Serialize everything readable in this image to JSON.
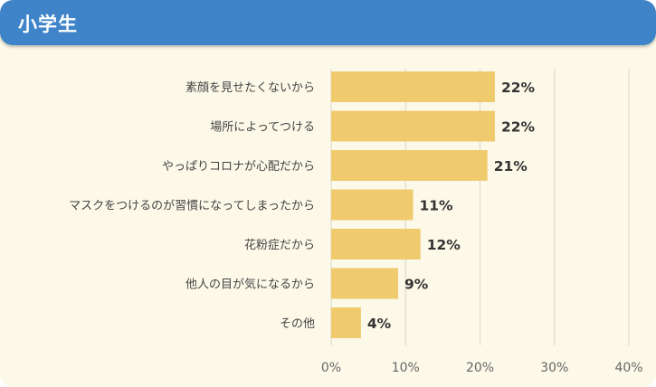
{
  "header": {
    "title": "小学生"
  },
  "colors": {
    "header_bg": "#3f84c9",
    "panel_bg": "#fcf9e9",
    "bar": "#f0cb6e",
    "grid": "#d9d6c8"
  },
  "chart_data": {
    "type": "bar",
    "orientation": "horizontal",
    "title": "小学生",
    "categories": [
      "素顔を見せたくないから",
      "場所によってつける",
      "やっぱりコロナが心配だから",
      "マスクをつけるのが習慣になってしまったから",
      "花粉症だから",
      "他人の目が気になるから",
      "その他"
    ],
    "values": [
      22,
      22,
      21,
      11,
      12,
      9,
      4
    ],
    "value_labels": [
      "22%",
      "22%",
      "21%",
      "11%",
      "12%",
      "9%",
      "4%"
    ],
    "xlim": [
      0,
      40
    ],
    "xticks": [
      0,
      10,
      20,
      30,
      40
    ],
    "xtick_labels": [
      "0%",
      "10%",
      "20%",
      "30%",
      "40%"
    ],
    "grid": true,
    "legend": "none"
  }
}
